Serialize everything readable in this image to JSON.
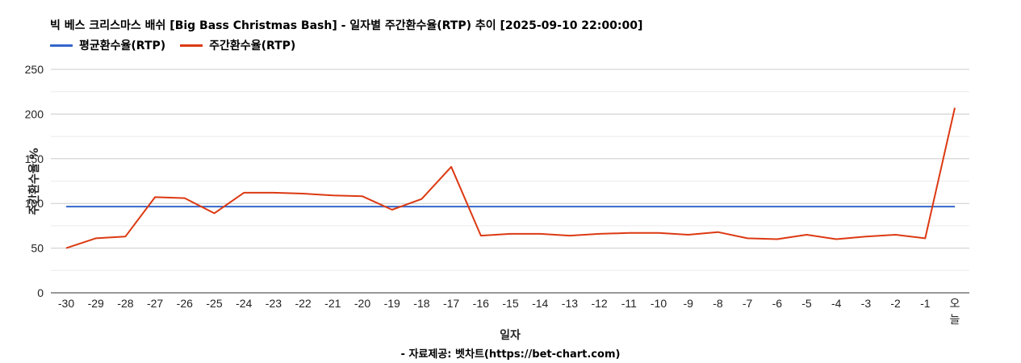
{
  "chart_data": {
    "type": "line",
    "title": "빅 베스 크리스마스 배쉬 [Big Bass Christmas Bash] - 일자별 주간환수율(RTP) 추이 [2025-09-10 22:00:00]",
    "xlabel": "일자",
    "ylabel": "주간환수율 %",
    "source": "- 자료제공: 벳차트(https://bet-chart.com)",
    "ylim": [
      0,
      250
    ],
    "yticks": [
      0,
      50,
      100,
      150,
      200,
      250
    ],
    "grid": true,
    "legend_position": "top-left",
    "categories": [
      "-30",
      "-29",
      "-28",
      "-27",
      "-26",
      "-25",
      "-24",
      "-23",
      "-22",
      "-21",
      "-20",
      "-19",
      "-18",
      "-17",
      "-16",
      "-15",
      "-14",
      "-13",
      "-12",
      "-11",
      "-10",
      "-9",
      "-8",
      "-7",
      "-6",
      "-5",
      "-4",
      "-3",
      "-2",
      "-1",
      "오늘"
    ],
    "series": [
      {
        "name": "평균환수율(RTP)",
        "color": "#3366cc",
        "values": [
          96.5,
          96.5,
          96.5,
          96.5,
          96.5,
          96.5,
          96.5,
          96.5,
          96.5,
          96.5,
          96.5,
          96.5,
          96.5,
          96.5,
          96.5,
          96.5,
          96.5,
          96.5,
          96.5,
          96.5,
          96.5,
          96.5,
          96.5,
          96.5,
          96.5,
          96.5,
          96.5,
          96.5,
          96.5,
          96.5,
          96.5
        ]
      },
      {
        "name": "주간환수율(RTP)",
        "color": "#dc3912",
        "values": [
          50,
          61,
          63,
          107,
          106,
          89,
          112,
          112,
          111,
          109,
          108,
          93,
          105,
          141,
          64,
          66,
          66,
          64,
          66,
          67,
          67,
          65,
          68,
          61,
          60,
          65,
          60,
          63,
          65,
          61,
          207
        ]
      }
    ]
  }
}
